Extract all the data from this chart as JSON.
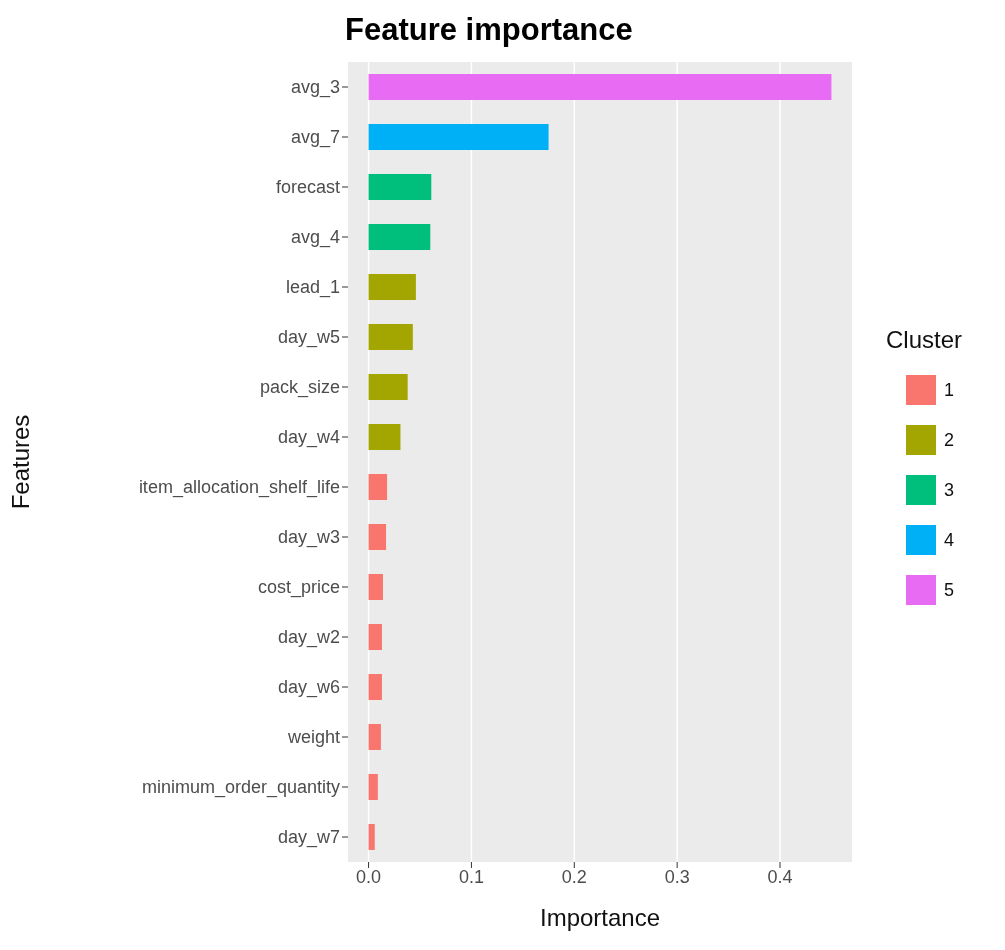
{
  "chart_data": {
    "type": "bar",
    "orientation": "horizontal",
    "stacked": true,
    "title": "Feature importance",
    "xlabel": "Importance",
    "ylabel": "Features",
    "legend_title": "Cluster",
    "legend": "right",
    "grid": "x",
    "categories": [
      "avg_3",
      "avg_7",
      "forecast",
      "avg_4",
      "lead_1",
      "day_w5",
      "pack_size",
      "day_w4",
      "item_allocation_shelf_life",
      "day_w3",
      "cost_price",
      "day_w2",
      "day_w6",
      "weight",
      "minimum_order_quantity",
      "day_w7"
    ],
    "series": [
      {
        "name": "1",
        "color": "#f8766d",
        "values": [
          null,
          null,
          null,
          null,
          null,
          null,
          null,
          null,
          0.018,
          0.017,
          0.014,
          0.013,
          0.013,
          0.012,
          0.009,
          0.006
        ]
      },
      {
        "name": "2",
        "color": "#a3a500",
        "values": [
          null,
          null,
          null,
          null,
          0.046,
          0.043,
          0.038,
          0.031,
          null,
          null,
          null,
          null,
          null,
          null,
          null,
          null
        ]
      },
      {
        "name": "3",
        "color": "#00bf7d",
        "values": [
          null,
          null,
          0.061,
          0.06,
          null,
          null,
          null,
          null,
          null,
          null,
          null,
          null,
          null,
          null,
          null,
          null
        ]
      },
      {
        "name": "4",
        "color": "#00b0f6",
        "values": [
          null,
          0.175,
          null,
          null,
          null,
          null,
          null,
          null,
          null,
          null,
          null,
          null,
          null,
          null,
          null,
          null
        ]
      },
      {
        "name": "5",
        "color": "#e76bf3",
        "values": [
          0.45,
          null,
          null,
          null,
          null,
          null,
          null,
          null,
          null,
          null,
          null,
          null,
          null,
          null,
          null,
          null
        ]
      }
    ],
    "xlim": [
      -0.02,
      0.47
    ],
    "xticks": [
      {
        "value": 0,
        "label": "0.0"
      },
      {
        "value": 0.1,
        "label": "0.1"
      },
      {
        "value": 0.2,
        "label": "0.2"
      },
      {
        "value": 0.3,
        "label": "0.3"
      },
      {
        "value": 0.4,
        "label": "0.4"
      }
    ]
  }
}
